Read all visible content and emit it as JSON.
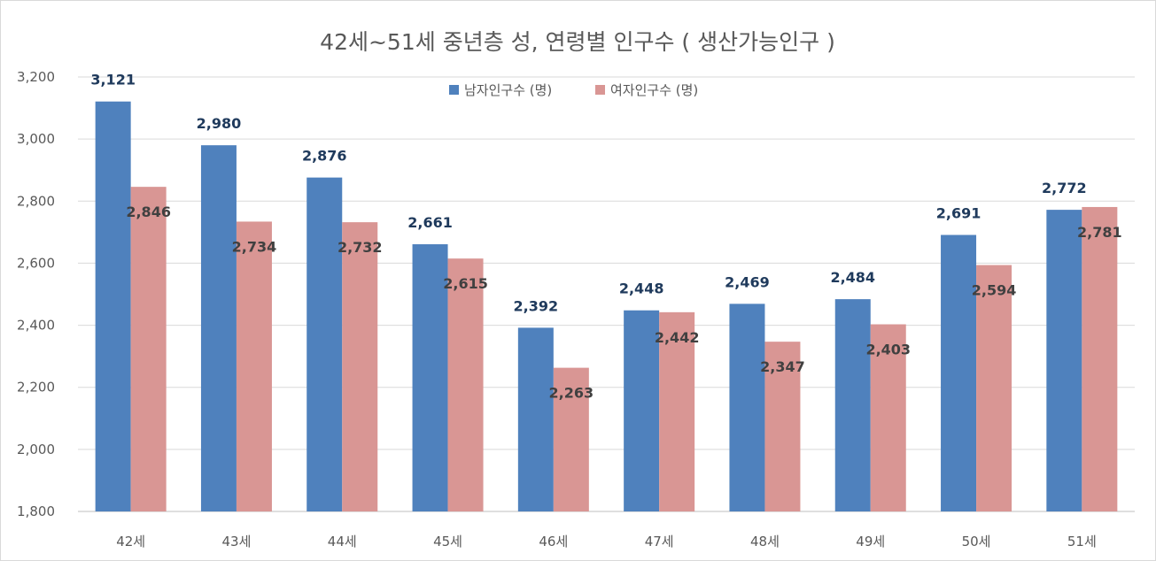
{
  "chart_data": {
    "type": "bar",
    "title": "42세~51세 중년층 성, 연령별 인구수 ( 생산가능인구 )",
    "xlabel": "",
    "ylabel": "",
    "ylim": [
      1800,
      3200
    ],
    "yticks": [
      1800,
      2000,
      2200,
      2400,
      2600,
      2800,
      3000,
      3200
    ],
    "ytick_labels": [
      "1,800",
      "2,000",
      "2,200",
      "2,400",
      "2,600",
      "2,800",
      "3,000",
      "3,200"
    ],
    "grid": true,
    "legend_position": "top-center",
    "categories": [
      "42세",
      "43세",
      "44세",
      "45세",
      "46세",
      "47세",
      "48세",
      "49세",
      "50세",
      "51세"
    ],
    "series": [
      {
        "name": "남자인구수 (명)",
        "color": "#4f81bd",
        "values": [
          3121,
          2980,
          2876,
          2661,
          2392,
          2448,
          2469,
          2484,
          2691,
          2772
        ],
        "labels": [
          "3,121",
          "2,980",
          "2,876",
          "2,661",
          "2,392",
          "2,448",
          "2,469",
          "2,484",
          "2,691",
          "2,772"
        ]
      },
      {
        "name": "여자인구수 (명)",
        "color": "#d99694",
        "values": [
          2846,
          2734,
          2732,
          2615,
          2263,
          2442,
          2347,
          2403,
          2594,
          2781
        ],
        "labels": [
          "2,846",
          "2,734",
          "2,732",
          "2,615",
          "2,263",
          "2,442",
          "2,347",
          "2,403",
          "2,594",
          "2,781"
        ]
      }
    ]
  }
}
